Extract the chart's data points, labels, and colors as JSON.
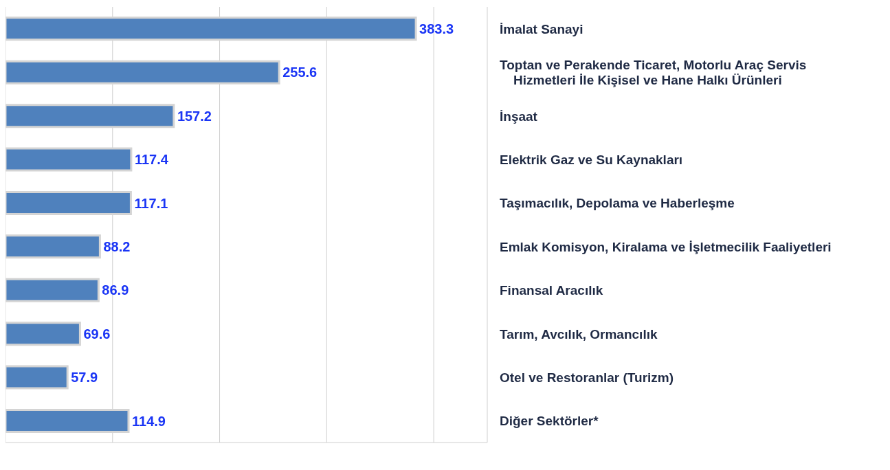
{
  "chart_data": {
    "type": "bar",
    "orientation": "horizontal",
    "categories": [
      "İmalat Sanayi",
      "Toptan ve Perakende Ticaret, Motorlu Araç Servis Hizmetleri İle Kişisel ve Hane Halkı Ürünleri",
      "İnşaat",
      "Elektrik Gaz ve Su Kaynakları",
      "Taşımacılık, Depolama ve Haberleşme",
      "Emlak Komisyon, Kiralama ve İşletmecilik Faaliyetleri",
      "Finansal Aracılık",
      "Tarım, Avcılık, Ormancılık",
      "Otel ve Restoranlar (Turizm)",
      "Diğer Sektörler*"
    ],
    "values": [
      383.3,
      255.6,
      157.2,
      117.4,
      117.1,
      88.2,
      86.9,
      69.6,
      57.9,
      114.9
    ],
    "color": "#4f81bd",
    "xlim": [
      0,
      450
    ],
    "xticks": [
      {
        "value": 0,
        "label": null
      },
      {
        "value": 100,
        "label": null
      },
      {
        "value": 200,
        "label": null
      },
      {
        "value": 300,
        "label": null
      },
      {
        "value": 400,
        "label": null
      }
    ],
    "grid": "x",
    "data_labels": true
  }
}
